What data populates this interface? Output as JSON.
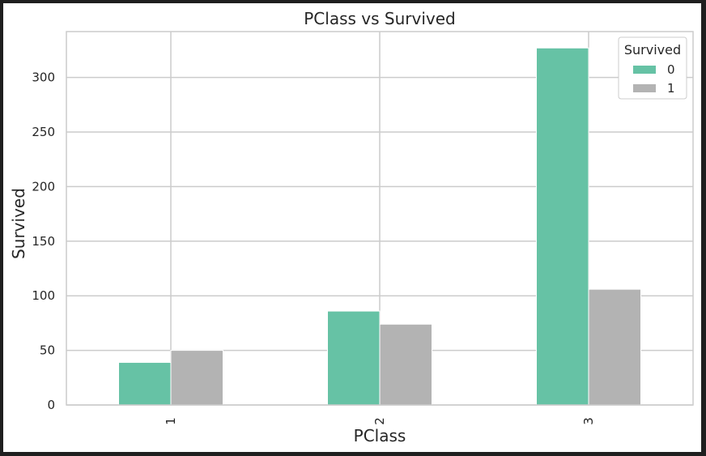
{
  "chart_data": {
    "type": "bar",
    "title": "PClass vs Survived",
    "xlabel": "PClass",
    "ylabel": "Survived",
    "categories": [
      "1",
      "2",
      "3"
    ],
    "series": [
      {
        "name": "0",
        "values": [
          39,
          86,
          327
        ]
      },
      {
        "name": "1",
        "values": [
          50,
          74,
          106
        ]
      }
    ],
    "colors": [
      "#66c2a5",
      "#b3b3b3"
    ],
    "ylim": [
      0,
      342
    ],
    "yticks": [
      0,
      50,
      100,
      150,
      200,
      250,
      300
    ],
    "grid": true,
    "legend": {
      "title": "Survived",
      "placement": "top-right"
    }
  }
}
